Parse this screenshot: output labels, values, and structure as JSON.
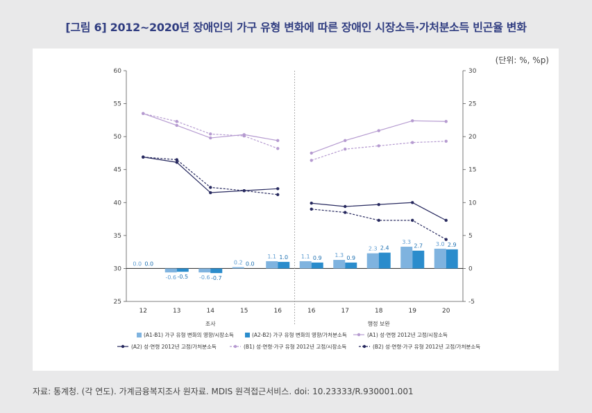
{
  "title": "[그림 6] 2012~2020년 장애인의 가구 유형 변화에 따른 장애인 시장소득·가처분소득 빈곤율 변화",
  "unit": "(단위: %, %p)",
  "source": "자료: 통계청. (각 연도). 가계금융복지조사 원자료. MDIS 원격접근서비스. doi: 10.23333/R.930001.001",
  "chart_data": {
    "type": "bar+line",
    "categories": [
      "12",
      "13",
      "14",
      "15",
      "16",
      "16",
      "17",
      "18",
      "19",
      "20"
    ],
    "group_labels": [
      "조사",
      "행정 보완"
    ],
    "y_left": {
      "min": 25,
      "max": 60,
      "ticks": [
        25,
        30,
        35,
        40,
        45,
        50,
        55,
        60
      ]
    },
    "y_right": {
      "min": -5,
      "max": 30,
      "ticks": [
        -5,
        0,
        5,
        10,
        15,
        20,
        25,
        30
      ]
    },
    "bar_series": [
      {
        "name": "(A1-B1) 가구 유형 변화의 영향/시장소득",
        "color": "#7fb3df",
        "values": [
          0.0,
          -0.6,
          -0.6,
          0.2,
          1.1,
          1.1,
          1.3,
          2.3,
          3.3,
          3.0
        ],
        "labels": [
          "0.0",
          "-0.6",
          "-0.6",
          "0.2",
          "1.1",
          "1.1",
          "1.3",
          "2.3",
          "3.3",
          "3.0"
        ]
      },
      {
        "name": "(A2-B2) 가구 유형 변화의 영향/가처분소득",
        "color": "#2a8ccc",
        "values": [
          0.0,
          -0.5,
          -0.7,
          0.0,
          1.0,
          0.9,
          0.9,
          2.4,
          2.7,
          2.9
        ],
        "labels": [
          "0.0",
          "-0.5",
          "-0.7",
          "0.0",
          "1.0",
          "0.9",
          "0.9",
          "2.4",
          "2.7",
          "2.9"
        ]
      }
    ],
    "line_series": [
      {
        "name": "(A1) 성·연령 2012년 고정/시장소득",
        "color": "#b59ad0",
        "dashed": false,
        "values": [
          53.5,
          51.7,
          49.8,
          50.3,
          49.4,
          47.5,
          49.4,
          50.9,
          52.4,
          52.3
        ]
      },
      {
        "name": "(A2) 성·연령 2012년 고정/가처분소득",
        "color": "#26285e",
        "dashed": false,
        "values": [
          46.9,
          46.1,
          41.5,
          41.8,
          42.1,
          39.9,
          39.4,
          39.7,
          40.0,
          37.3
        ]
      },
      {
        "name": "(B1) 성·연령·가구 유형 2012년 고정/시장소득",
        "color": "#b59ad0",
        "dashed": true,
        "values": [
          53.5,
          52.3,
          50.4,
          50.1,
          48.2,
          46.4,
          48.1,
          48.6,
          49.1,
          49.3
        ]
      },
      {
        "name": "(B2) 성·연령·가구 유형 2012년 고정/가처분소득",
        "color": "#26285e",
        "dashed": true,
        "values": [
          46.9,
          46.5,
          42.3,
          41.8,
          41.2,
          39.0,
          38.5,
          37.3,
          37.3,
          34.4
        ]
      }
    ],
    "legend_position": "bottom"
  }
}
